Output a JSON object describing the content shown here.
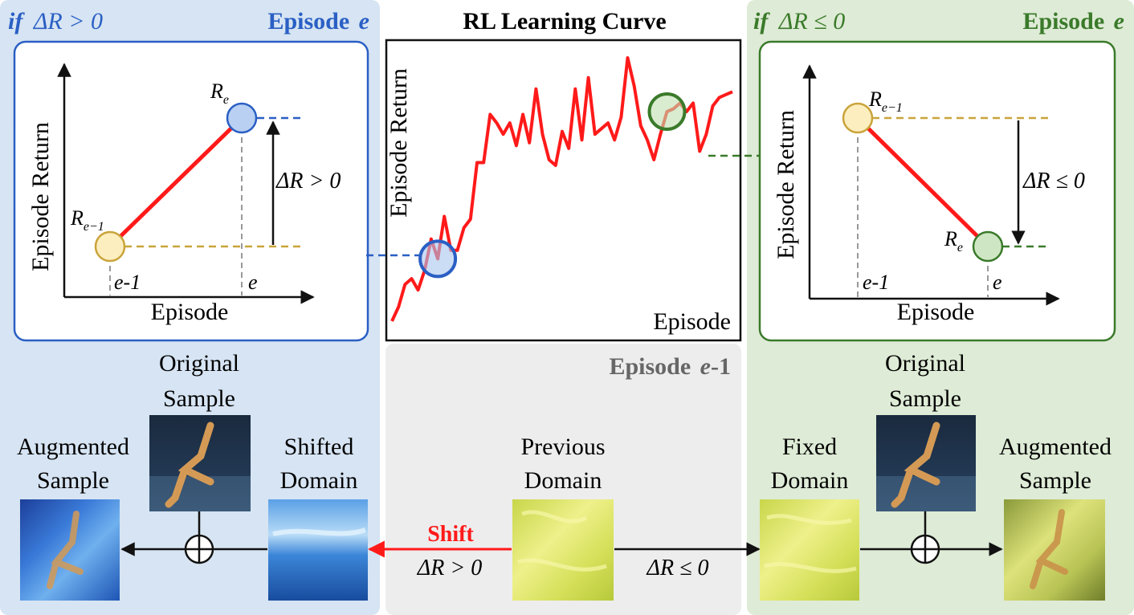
{
  "left_panel": {
    "header_prefix": "if",
    "header_condition": "ΔR > 0",
    "episode_label": "Episode",
    "episode_var": "e",
    "chart": {
      "ylabel": "Episode Return",
      "xlabel": "Episode",
      "prev_point_label": "R",
      "prev_point_sub": "e−1",
      "curr_point_label": "R",
      "curr_point_sub": "e",
      "tick_prev": "e-1",
      "tick_curr": "e",
      "delta_label": "ΔR > 0"
    },
    "original_sample_label": [
      "Original",
      "Sample"
    ],
    "augmented_sample_label": [
      "Augmented",
      "Sample"
    ],
    "shifted_domain_label": [
      "Shifted",
      "Domain"
    ]
  },
  "center_panel": {
    "title": "RL Learning Curve",
    "ylabel": "Episode Return",
    "xlabel": "Episode",
    "bottom_episode_label": "Episode",
    "bottom_episode_var": "e",
    "bottom_episode_suffix": "-1",
    "previous_domain_label": [
      "Previous",
      "Domain"
    ],
    "shift_label": "Shift",
    "shift_condition": "ΔR > 0",
    "fixed_condition": "ΔR ≤ 0"
  },
  "right_panel": {
    "header_prefix": "if",
    "header_condition": "ΔR ≤ 0",
    "episode_label": "Episode",
    "episode_var": "e",
    "chart": {
      "ylabel": "Episode Return",
      "xlabel": "Episode",
      "prev_point_label": "R",
      "prev_point_sub": "e−1",
      "curr_point_label": "R",
      "curr_point_sub": "e",
      "tick_prev": "e-1",
      "tick_curr": "e",
      "delta_label": "ΔR ≤ 0"
    },
    "original_sample_label": [
      "Original",
      "Sample"
    ],
    "augmented_sample_label": [
      "Augmented",
      "Sample"
    ],
    "fixed_domain_label": [
      "Fixed",
      "Domain"
    ]
  },
  "chart_data": {
    "type": "line",
    "title": "RL Learning Curve",
    "xlabel": "Episode",
    "ylabel": "Episode Return",
    "x": [
      1,
      2,
      3,
      4,
      5,
      6,
      7,
      8,
      9,
      10,
      11,
      12,
      13,
      14,
      15,
      16,
      17,
      18,
      19,
      20,
      21,
      22,
      23,
      24,
      25,
      26,
      27,
      28,
      29,
      30,
      31,
      32,
      33,
      34,
      35,
      36,
      37,
      38,
      39,
      40,
      41,
      42,
      43,
      44,
      45,
      46,
      47,
      48,
      49,
      50,
      51,
      52,
      53
    ],
    "y": [
      0.0,
      0.05,
      0.13,
      0.15,
      0.11,
      0.18,
      0.29,
      0.22,
      0.37,
      0.25,
      0.25,
      0.33,
      0.36,
      0.56,
      0.56,
      0.73,
      0.7,
      0.66,
      0.7,
      0.62,
      0.73,
      0.63,
      0.82,
      0.66,
      0.57,
      0.55,
      0.67,
      0.61,
      0.82,
      0.64,
      0.86,
      0.66,
      0.68,
      0.7,
      0.64,
      0.72,
      0.93,
      0.83,
      0.69,
      0.64,
      0.57,
      0.66,
      0.74,
      0.75,
      0.77,
      0.74,
      0.77,
      0.6,
      0.66,
      0.76,
      0.79,
      0.8,
      0.81
    ],
    "series_color": "#ff1a1a",
    "grid": false,
    "legend": "none",
    "highlight_blue_x": 8,
    "highlight_green_x": 43
  },
  "colors": {
    "blue_panel_bg": "#d6e4f3",
    "green_panel_bg": "#deebd6",
    "grey_panel_bg": "#ededed",
    "blue_accent": "#2a5fc4",
    "green_accent": "#3a7a2a",
    "gold": "#c9a43a",
    "red": "#ff1a1a"
  }
}
